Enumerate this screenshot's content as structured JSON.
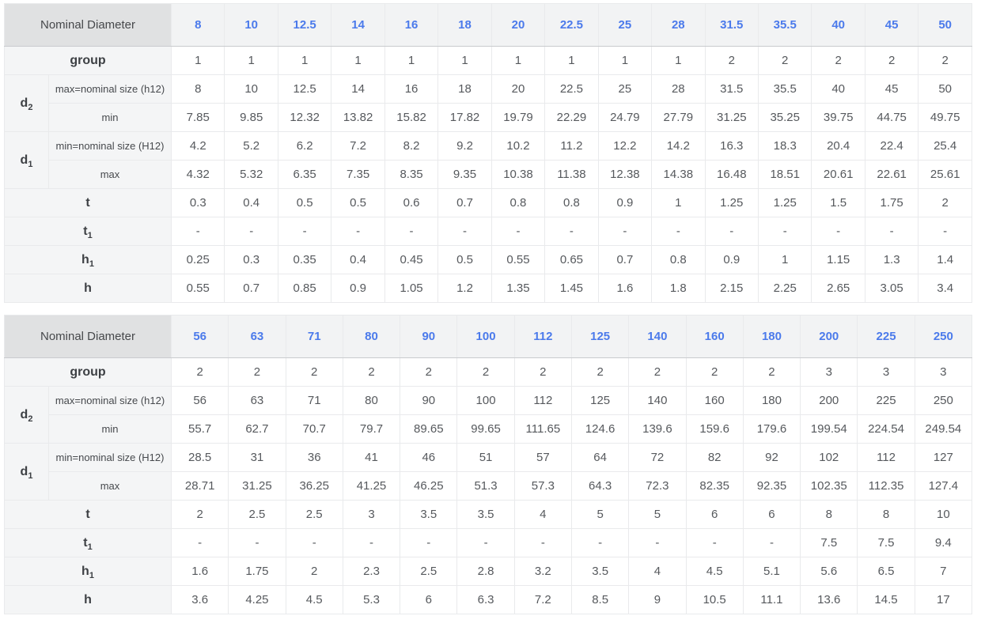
{
  "colors": {
    "accent_blue": "#4b7aeb",
    "corner_bg": "#e0e1e2",
    "column_header_bg": "#f2f3f4",
    "row_label_bg": "#f4f5f6",
    "cell_border": "#e9eaec",
    "value_text": "#56595d"
  },
  "tables": [
    {
      "corner_label": "Nominal Diameter",
      "columns": [
        "8",
        "10",
        "12.5",
        "14",
        "16",
        "18",
        "20",
        "22.5",
        "25",
        "28",
        "31.5",
        "35.5",
        "40",
        "45",
        "50"
      ],
      "group_row": {
        "label": "group",
        "values": [
          "1",
          "1",
          "1",
          "1",
          "1",
          "1",
          "1",
          "1",
          "1",
          "1",
          "2",
          "2",
          "2",
          "2",
          "2"
        ]
      },
      "param_groups": [
        {
          "symbol": "d",
          "sub": "2",
          "rows": [
            {
              "label": "max=nominal size (h12)",
              "values": [
                "8",
                "10",
                "12.5",
                "14",
                "16",
                "18",
                "20",
                "22.5",
                "25",
                "28",
                "31.5",
                "35.5",
                "40",
                "45",
                "50"
              ]
            },
            {
              "label": "min",
              "values": [
                "7.85",
                "9.85",
                "12.32",
                "13.82",
                "15.82",
                "17.82",
                "19.79",
                "22.29",
                "24.79",
                "27.79",
                "31.25",
                "35.25",
                "39.75",
                "44.75",
                "49.75"
              ]
            }
          ]
        },
        {
          "symbol": "d",
          "sub": "1",
          "rows": [
            {
              "label": "min=nominal size (H12)",
              "values": [
                "4.2",
                "5.2",
                "6.2",
                "7.2",
                "8.2",
                "9.2",
                "10.2",
                "11.2",
                "12.2",
                "14.2",
                "16.3",
                "18.3",
                "20.4",
                "22.4",
                "25.4"
              ]
            },
            {
              "label": "max",
              "values": [
                "4.32",
                "5.32",
                "6.35",
                "7.35",
                "8.35",
                "9.35",
                "10.38",
                "11.38",
                "12.38",
                "14.38",
                "16.48",
                "18.51",
                "20.61",
                "22.61",
                "25.61"
              ]
            }
          ]
        }
      ],
      "simple_rows": [
        {
          "symbol": "t",
          "sub": "",
          "values": [
            "0.3",
            "0.4",
            "0.5",
            "0.5",
            "0.6",
            "0.7",
            "0.8",
            "0.8",
            "0.9",
            "1",
            "1.25",
            "1.25",
            "1.5",
            "1.75",
            "2"
          ]
        },
        {
          "symbol": "t",
          "sub": "1",
          "values": [
            "-",
            "-",
            "-",
            "-",
            "-",
            "-",
            "-",
            "-",
            "-",
            "-",
            "-",
            "-",
            "-",
            "-",
            "-"
          ]
        },
        {
          "symbol": "h",
          "sub": "1",
          "values": [
            "0.25",
            "0.3",
            "0.35",
            "0.4",
            "0.45",
            "0.5",
            "0.55",
            "0.65",
            "0.7",
            "0.8",
            "0.9",
            "1",
            "1.15",
            "1.3",
            "1.4"
          ]
        },
        {
          "symbol": "h",
          "sub": "",
          "values": [
            "0.55",
            "0.7",
            "0.85",
            "0.9",
            "1.05",
            "1.2",
            "1.35",
            "1.45",
            "1.6",
            "1.8",
            "2.15",
            "2.25",
            "2.65",
            "3.05",
            "3.4"
          ]
        }
      ]
    },
    {
      "corner_label": "Nominal Diameter",
      "columns": [
        "56",
        "63",
        "71",
        "80",
        "90",
        "100",
        "112",
        "125",
        "140",
        "160",
        "180",
        "200",
        "225",
        "250"
      ],
      "group_row": {
        "label": "group",
        "values": [
          "2",
          "2",
          "2",
          "2",
          "2",
          "2",
          "2",
          "2",
          "2",
          "2",
          "2",
          "3",
          "3",
          "3"
        ]
      },
      "param_groups": [
        {
          "symbol": "d",
          "sub": "2",
          "rows": [
            {
              "label": "max=nominal size (h12)",
              "values": [
                "56",
                "63",
                "71",
                "80",
                "90",
                "100",
                "112",
                "125",
                "140",
                "160",
                "180",
                "200",
                "225",
                "250"
              ]
            },
            {
              "label": "min",
              "values": [
                "55.7",
                "62.7",
                "70.7",
                "79.7",
                "89.65",
                "99.65",
                "111.65",
                "124.6",
                "139.6",
                "159.6",
                "179.6",
                "199.54",
                "224.54",
                "249.54"
              ]
            }
          ]
        },
        {
          "symbol": "d",
          "sub": "1",
          "rows": [
            {
              "label": "min=nominal size (H12)",
              "values": [
                "28.5",
                "31",
                "36",
                "41",
                "46",
                "51",
                "57",
                "64",
                "72",
                "82",
                "92",
                "102",
                "112",
                "127"
              ]
            },
            {
              "label": "max",
              "values": [
                "28.71",
                "31.25",
                "36.25",
                "41.25",
                "46.25",
                "51.3",
                "57.3",
                "64.3",
                "72.3",
                "82.35",
                "92.35",
                "102.35",
                "112.35",
                "127.4"
              ]
            }
          ]
        }
      ],
      "simple_rows": [
        {
          "symbol": "t",
          "sub": "",
          "values": [
            "2",
            "2.5",
            "2.5",
            "3",
            "3.5",
            "3.5",
            "4",
            "5",
            "5",
            "6",
            "6",
            "8",
            "8",
            "10"
          ]
        },
        {
          "symbol": "t",
          "sub": "1",
          "values": [
            "-",
            "-",
            "-",
            "-",
            "-",
            "-",
            "-",
            "-",
            "-",
            "-",
            "-",
            "7.5",
            "7.5",
            "9.4"
          ]
        },
        {
          "symbol": "h",
          "sub": "1",
          "values": [
            "1.6",
            "1.75",
            "2",
            "2.3",
            "2.5",
            "2.8",
            "3.2",
            "3.5",
            "4",
            "4.5",
            "5.1",
            "5.6",
            "6.5",
            "7"
          ]
        },
        {
          "symbol": "h",
          "sub": "",
          "values": [
            "3.6",
            "4.25",
            "4.5",
            "5.3",
            "6",
            "6.3",
            "7.2",
            "8.5",
            "9",
            "10.5",
            "11.1",
            "13.6",
            "14.5",
            "17"
          ]
        }
      ]
    }
  ]
}
